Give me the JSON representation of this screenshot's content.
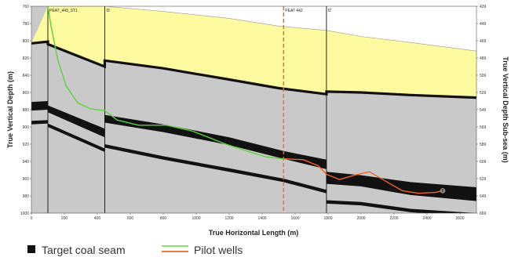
{
  "chart_data": {
    "type": "cross-section",
    "xlabel": "True Horizontal Length (m)",
    "ylabel": "True Vertical Depth (m)",
    "y2label": "True Vertical Depth Sub-sea (m)",
    "xlim": [
      0,
      2700
    ],
    "ylim": [
      760,
      1000
    ],
    "y2lim": [
      429,
      669
    ],
    "x_ticks": [
      "0",
      "200",
      "400",
      "600",
      "800",
      "1000",
      "1200",
      "1400",
      "1600",
      "1800",
      "2000",
      "2200",
      "2400",
      "2600"
    ],
    "y_ticks": [
      "760",
      "780",
      "800",
      "820",
      "840",
      "860",
      "880",
      "900",
      "920",
      "940",
      "960",
      "980",
      "1000"
    ],
    "y2_ticks": [
      "429",
      "449",
      "469",
      "489",
      "509",
      "529",
      "549",
      "569",
      "589",
      "609",
      "629",
      "649",
      "669"
    ],
    "faults": [
      {
        "label": "PEAT_443_ST1",
        "x": 100,
        "style": "solid"
      },
      {
        "label": "f3",
        "x": 445,
        "style": "solid"
      },
      {
        "label": "PEAT 442",
        "x": 1530,
        "style": "dashed"
      },
      {
        "label": "f2",
        "x": 1790,
        "style": "solid"
      }
    ],
    "marker_label": "T",
    "marker_point": [
      2495,
      974
    ],
    "legend": [
      {
        "label": "Target coal seam",
        "color": "#111111"
      },
      {
        "label": "Pilot wells",
        "colors": [
          "#7ed957",
          "#f26522"
        ]
      }
    ],
    "series": [
      {
        "name": "Pilot wells",
        "color": "#5ad339",
        "points": [
          [
            100,
            760
          ],
          [
            120,
            784
          ],
          [
            160,
            822
          ],
          [
            210,
            852
          ],
          [
            280,
            872
          ],
          [
            360,
            879
          ],
          [
            445,
            881
          ],
          [
            520,
            892
          ],
          [
            650,
            898
          ],
          [
            820,
            898
          ],
          [
            980,
            905
          ],
          [
            1180,
            920
          ],
          [
            1340,
            930
          ],
          [
            1430,
            935
          ],
          [
            1530,
            937
          ]
        ]
      },
      {
        "name": "Pilot wells",
        "color": "#f26522",
        "points": [
          [
            1530,
            937
          ],
          [
            1650,
            938
          ],
          [
            1740,
            945
          ],
          [
            1790,
            955
          ],
          [
            1870,
            961
          ],
          [
            1960,
            956
          ],
          [
            2050,
            952
          ],
          [
            2150,
            963
          ],
          [
            2250,
            974
          ],
          [
            2350,
            977
          ],
          [
            2450,
            976
          ],
          [
            2495,
            974
          ]
        ]
      }
    ],
    "layers": {
      "surface": [
        [
          100,
          760
        ],
        [
          445,
          760
        ],
        [
          800,
          766
        ],
        [
          1200,
          774
        ],
        [
          1500,
          783
        ],
        [
          1790,
          788
        ],
        [
          2000,
          795
        ],
        [
          2300,
          802
        ],
        [
          2700,
          812
        ]
      ],
      "top_seam_a": [
        [
          0,
          803
        ],
        [
          100,
          801
        ],
        [
          100,
          804
        ],
        [
          445,
          830
        ],
        [
          445,
          823
        ],
        [
          800,
          832
        ],
        [
          1200,
          845
        ],
        [
          1500,
          855
        ],
        [
          1790,
          862
        ],
        [
          1790,
          859
        ],
        [
          2000,
          860
        ],
        [
          2300,
          863
        ],
        [
          2700,
          866
        ]
      ],
      "top_seam_b": [
        [
          0,
          807
        ],
        [
          100,
          806
        ],
        [
          100,
          809
        ],
        [
          445,
          835
        ],
        [
          445,
          828
        ],
        [
          800,
          837
        ],
        [
          1200,
          850
        ],
        [
          1500,
          860
        ],
        [
          1790,
          867
        ],
        [
          1790,
          864
        ],
        [
          2000,
          865
        ],
        [
          2300,
          868
        ],
        [
          2700,
          871
        ]
      ],
      "target_seam_top": [
        [
          0,
          871
        ],
        [
          100,
          870
        ],
        [
          100,
          875
        ],
        [
          445,
          902
        ],
        [
          445,
          886
        ],
        [
          800,
          897
        ],
        [
          1200,
          912
        ],
        [
          1530,
          928
        ],
        [
          1790,
          938
        ],
        [
          1790,
          952
        ],
        [
          2000,
          956
        ],
        [
          2300,
          964
        ],
        [
          2700,
          970
        ]
      ],
      "target_seam_bottom": [
        [
          0,
          881
        ],
        [
          100,
          880
        ],
        [
          100,
          883
        ],
        [
          445,
          912
        ],
        [
          445,
          895
        ],
        [
          800,
          906
        ],
        [
          1200,
          921
        ],
        [
          1530,
          937
        ],
        [
          1790,
          949
        ],
        [
          1790,
          966
        ],
        [
          2000,
          969
        ],
        [
          2300,
          979
        ],
        [
          2700,
          986
        ]
      ],
      "lower_seam_top": [
        [
          0,
          893
        ],
        [
          100,
          892
        ],
        [
          100,
          896
        ],
        [
          445,
          925
        ],
        [
          445,
          920
        ],
        [
          800,
          934
        ],
        [
          1200,
          948
        ],
        [
          1530,
          960
        ],
        [
          1790,
          973
        ],
        [
          1790,
          985
        ],
        [
          2000,
          987
        ],
        [
          2300,
          995
        ],
        [
          2700,
          1000
        ]
      ],
      "lower_seam_bottom": [
        [
          0,
          897
        ],
        [
          100,
          896
        ],
        [
          100,
          900
        ],
        [
          445,
          929
        ],
        [
          445,
          924
        ],
        [
          800,
          938
        ],
        [
          1200,
          952
        ],
        [
          1530,
          964
        ],
        [
          1790,
          977
        ],
        [
          1790,
          989
        ],
        [
          2000,
          991
        ],
        [
          2300,
          999
        ],
        [
          2700,
          1004
        ]
      ]
    }
  }
}
